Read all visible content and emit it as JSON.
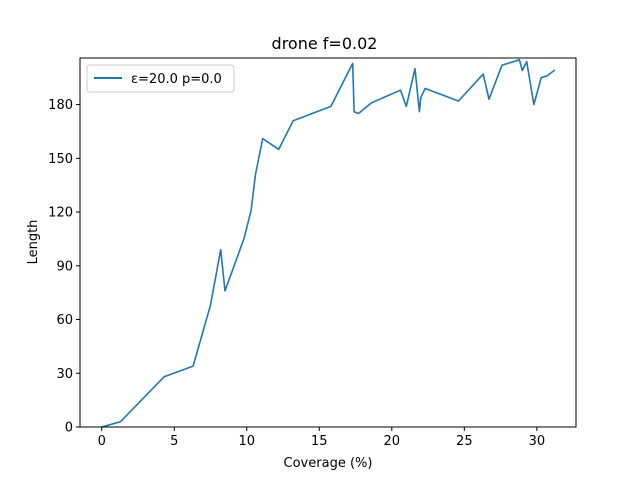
{
  "chart_data": {
    "type": "line",
    "title": "drone f=0.02",
    "xlabel": "Coverage (%)",
    "ylabel": "Length",
    "xlim": [
      -1.5,
      32.7
    ],
    "ylim": [
      0,
      206
    ],
    "xticks": [
      0,
      5,
      10,
      15,
      20,
      25,
      30
    ],
    "yticks": [
      0,
      30,
      60,
      90,
      120,
      150,
      180
    ],
    "grid": false,
    "legend_position": "top-left",
    "series": [
      {
        "name": "ε=20.0 p=0.0",
        "color": "#1f77b4",
        "x": [
          0.0,
          1.3,
          4.3,
          6.3,
          7.5,
          8.2,
          8.5,
          9.8,
          10.3,
          10.6,
          11.1,
          12.2,
          13.2,
          15.8,
          17.3,
          17.4,
          17.7,
          18.6,
          20.6,
          21.0,
          21.6,
          21.9,
          22.0,
          22.3,
          24.6,
          26.3,
          26.7,
          27.6,
          28.8,
          29.0,
          29.3,
          29.8,
          30.3,
          30.7,
          31.2
        ],
        "y": [
          0,
          3,
          28,
          34,
          68,
          99,
          76,
          105,
          121,
          141,
          161,
          155,
          171,
          179,
          203,
          176,
          175,
          181,
          188,
          179,
          200,
          176,
          184,
          189,
          182,
          197,
          183,
          202,
          205,
          199,
          204,
          180,
          195,
          196,
          199
        ]
      }
    ]
  }
}
